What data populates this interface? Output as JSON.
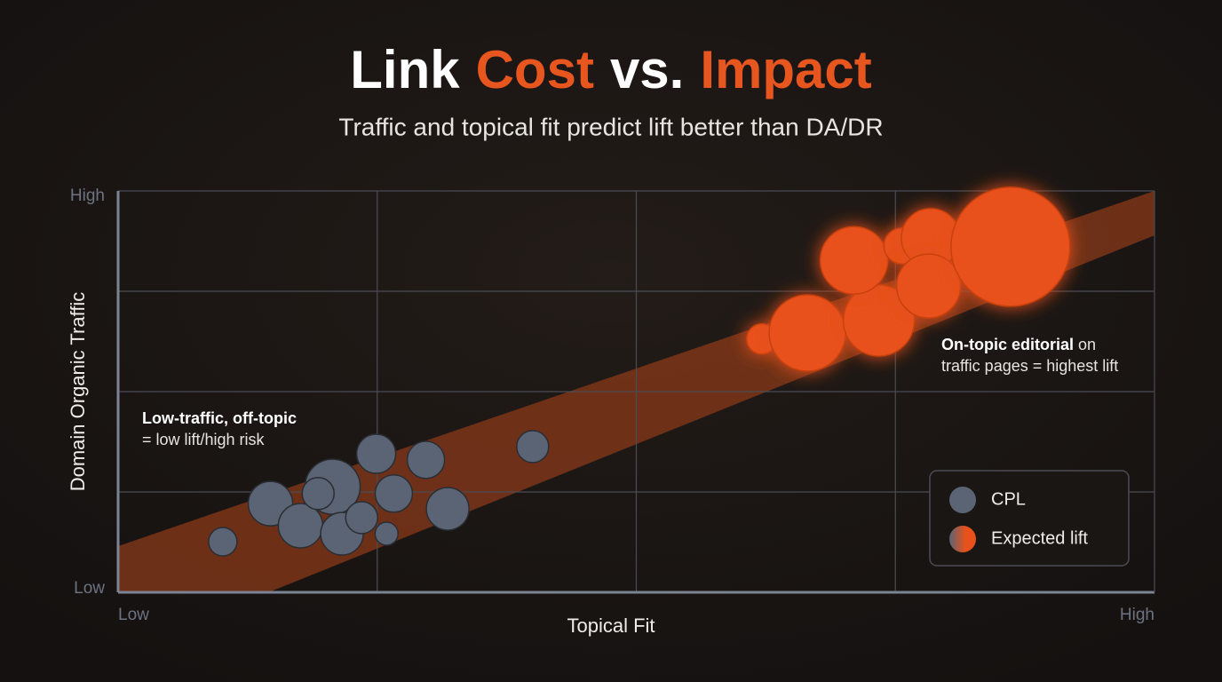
{
  "chart_data": {
    "type": "bubble",
    "title_parts": [
      {
        "text": "Link",
        "color": "#ffffff"
      },
      {
        "text": "Cost",
        "color": "#e8561f"
      },
      {
        "text": "vs.",
        "color": "#ffffff"
      },
      {
        "text": "Impact",
        "color": "#e8561f"
      }
    ],
    "subtitle": "Traffic and topical fit predict lift better than DA/DR",
    "x_label": "Topical Fit",
    "y_label": "Domain Organic Traffic",
    "xlim": [
      0,
      100
    ],
    "ylim": [
      0,
      100
    ],
    "xticks": [
      {
        "value": 0,
        "label": "Low"
      },
      {
        "value": 100,
        "label": "High"
      }
    ],
    "yticks": [
      {
        "value": 0,
        "label": "Low"
      },
      {
        "value": 100,
        "label": "High"
      }
    ],
    "xgrid": [
      25,
      50,
      75
    ],
    "ygrid": [
      25,
      50,
      75
    ],
    "legend": "bottom-right",
    "series": [
      {
        "name": "CPL",
        "color": "#5b6474",
        "x": [
          10.1,
          14.7,
          17.6,
          20.7,
          19.3,
          21.6,
          23.5,
          24.9,
          26.6,
          25.9,
          29.7,
          31.8,
          40.0
        ],
        "values": [
          12.6,
          22.1,
          16.6,
          26.3,
          24.6,
          14.6,
          18.6,
          34.5,
          24.6,
          14.6,
          33.0,
          20.8,
          36.3
        ],
        "sizes": [
          16,
          25,
          25,
          31,
          18,
          24,
          18,
          22,
          21,
          13,
          21,
          24,
          18
        ]
      },
      {
        "name": "Expected lift",
        "color": "#e8511c",
        "x": [
          62.1,
          66.5,
          73.4,
          71.0,
          75.6,
          78.4,
          78.2,
          86.1
        ],
        "values": [
          63.1,
          64.6,
          67.7,
          82.7,
          86.3,
          88.3,
          76.3,
          86.1
        ],
        "sizes": [
          17,
          43,
          40,
          38,
          20,
          33,
          36,
          67
        ]
      }
    ],
    "annotations": [
      {
        "bold": "Low-traffic, off-topic",
        "rest": "= low lift/high risk"
      },
      {
        "bold": "On-topic editorial",
        "rest": "on",
        "line2": "traffic pages = highest lift"
      }
    ]
  }
}
